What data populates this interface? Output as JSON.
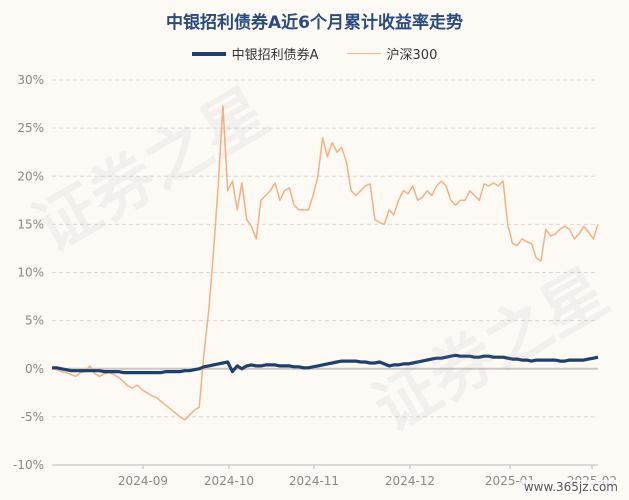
{
  "chart_data": {
    "type": "line",
    "title": "中银招利债券A近6个月累计收益率走势",
    "xlabel": "",
    "ylabel": "",
    "ylim": [
      -10,
      30
    ],
    "yticks": [
      -10,
      -5,
      0,
      5,
      10,
      15,
      20,
      25,
      30
    ],
    "ytick_labels": [
      "-10%",
      "-5%",
      "0%",
      "5%",
      "10%",
      "15%",
      "20%",
      "25%",
      "30%"
    ],
    "xtick_labels": [
      "2024-09",
      "2024-10",
      "2024-11",
      "2024-12",
      "2025-01",
      "2025-02"
    ],
    "grid": true,
    "legend_position": "top-center",
    "series": [
      {
        "name": "中银招利债券A",
        "color": "#1f3f6d",
        "values": [
          0.1,
          0.1,
          0.0,
          -0.1,
          -0.2,
          -0.2,
          -0.2,
          -0.2,
          -0.2,
          -0.2,
          -0.2,
          -0.3,
          -0.3,
          -0.3,
          -0.3,
          -0.4,
          -0.4,
          -0.4,
          -0.4,
          -0.4,
          -0.4,
          -0.4,
          -0.4,
          -0.4,
          -0.3,
          -0.3,
          -0.3,
          -0.3,
          -0.2,
          -0.2,
          -0.1,
          0.0,
          0.2,
          0.3,
          0.4,
          0.5,
          0.6,
          0.7,
          -0.3,
          0.3,
          0.0,
          0.3,
          0.4,
          0.3,
          0.3,
          0.4,
          0.4,
          0.4,
          0.3,
          0.3,
          0.3,
          0.2,
          0.2,
          0.1,
          0.1,
          0.2,
          0.3,
          0.4,
          0.5,
          0.6,
          0.7,
          0.8,
          0.8,
          0.8,
          0.8,
          0.7,
          0.7,
          0.6,
          0.6,
          0.7,
          0.5,
          0.3,
          0.4,
          0.4,
          0.5,
          0.5,
          0.6,
          0.7,
          0.8,
          0.9,
          1.0,
          1.1,
          1.1,
          1.2,
          1.3,
          1.4,
          1.3,
          1.3,
          1.3,
          1.2,
          1.2,
          1.3,
          1.3,
          1.2,
          1.2,
          1.2,
          1.1,
          1.0,
          1.0,
          0.9,
          0.9,
          0.8,
          0.9,
          0.9,
          0.9,
          0.9,
          0.9,
          0.8,
          0.8,
          0.9,
          0.9,
          0.9,
          0.9,
          1.0,
          1.1,
          1.2
        ]
      },
      {
        "name": "沪深300",
        "color": "#f4b183",
        "values": [
          0.0,
          -0.1,
          -0.3,
          -0.4,
          -0.6,
          -0.8,
          -0.4,
          -0.3,
          0.3,
          -0.5,
          -0.8,
          -0.5,
          -0.4,
          -0.6,
          -0.9,
          -1.3,
          -1.8,
          -2.0,
          -1.7,
          -2.2,
          -2.5,
          -2.8,
          -3.0,
          -3.4,
          -3.8,
          -4.2,
          -4.6,
          -5.0,
          -5.3,
          -4.8,
          -4.3,
          -4.0,
          1.5,
          6.0,
          12.0,
          19.0,
          27.3,
          18.5,
          19.5,
          16.5,
          19.3,
          15.5,
          14.8,
          13.5,
          17.5,
          18.0,
          18.5,
          19.3,
          17.5,
          18.5,
          18.8,
          17.0,
          16.5,
          16.5,
          16.5,
          18.0,
          20.0,
          24.0,
          22.0,
          23.5,
          22.5,
          23.0,
          21.5,
          18.5,
          18.0,
          18.5,
          19.0,
          19.2,
          15.5,
          15.2,
          15.0,
          16.5,
          16.0,
          17.5,
          18.5,
          18.2,
          19.0,
          17.5,
          17.8,
          18.5,
          18.0,
          19.0,
          19.5,
          19.0,
          17.5,
          17.0,
          17.5,
          17.5,
          18.5,
          18.0,
          17.5,
          19.2,
          19.0,
          19.3,
          19.0,
          19.5,
          15.0,
          13.0,
          12.8,
          13.5,
          13.2,
          13.0,
          11.5,
          11.2,
          14.5,
          13.8,
          14.0,
          14.5,
          14.8,
          14.5,
          13.5,
          14.0,
          14.8,
          14.2,
          13.5,
          15.0
        ]
      }
    ]
  },
  "watermark_text": "证券之星",
  "site_mark": "www.365jz.com"
}
